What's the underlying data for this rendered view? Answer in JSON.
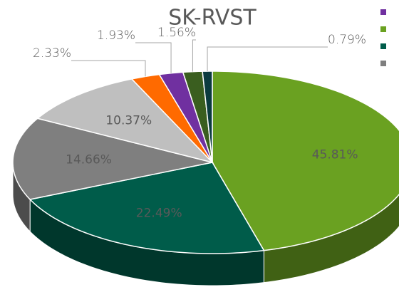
{
  "chart_data": {
    "type": "pie",
    "title": "SK-RVST",
    "values": [
      45.81,
      22.49,
      14.66,
      10.37,
      2.33,
      1.93,
      1.56,
      0.79
    ],
    "value_labels": [
      "45.81%",
      "22.49%",
      "14.66%",
      "10.37%",
      "2.33%",
      "1.93%",
      "1.56%",
      "0.79%"
    ],
    "colors": [
      "#6aa121",
      "#005c4a",
      "#7f7f7f",
      "#bfbfbf",
      "#ff6a00",
      "#7030a0",
      "#3a5e1f",
      "#0b3b3f"
    ]
  }
}
